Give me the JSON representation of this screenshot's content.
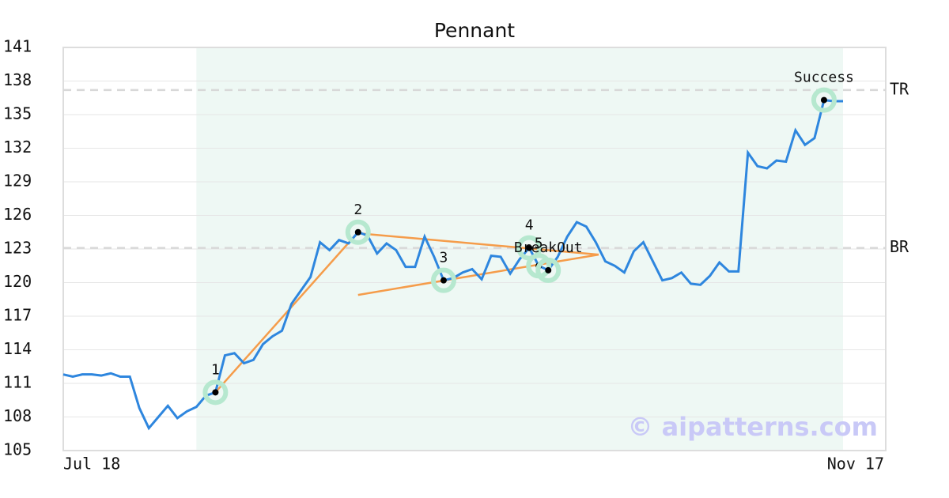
{
  "chart_data": {
    "type": "line",
    "title": "Pennant",
    "categories": [
      "Jul 18",
      null,
      null,
      null,
      null,
      null,
      null,
      null,
      null,
      null,
      null,
      null,
      null,
      null,
      null,
      null,
      null,
      null,
      null,
      null,
      null,
      null,
      null,
      null,
      null,
      null,
      null,
      null,
      null,
      null,
      null,
      null,
      null,
      null,
      null,
      null,
      null,
      null,
      null,
      null,
      null,
      null,
      null,
      null,
      null,
      null,
      null,
      null,
      null,
      null,
      null,
      null,
      null,
      null,
      null,
      null,
      null,
      null,
      null,
      null,
      null,
      null,
      null,
      null,
      null,
      null,
      null,
      null,
      null,
      null,
      null,
      null,
      null,
      null,
      null,
      null,
      null,
      null,
      null,
      null,
      null,
      null,
      "Nov 17"
    ],
    "series": [
      {
        "color": "#2e86de",
        "values": [
          111.8,
          111.6,
          111.8,
          111.8,
          111.7,
          111.9,
          111.6,
          111.6,
          108.8,
          107.0,
          108.0,
          109.0,
          107.9,
          108.5,
          108.9,
          109.9,
          110.2,
          113.5,
          113.7,
          112.8,
          113.1,
          114.5,
          115.2,
          115.7,
          118.1,
          119.3,
          120.5,
          123.6,
          122.9,
          123.8,
          123.5,
          124.5,
          124.2,
          122.6,
          123.5,
          122.9,
          121.4,
          121.4,
          124.1,
          122.3,
          120.2,
          120.4,
          120.9,
          121.2,
          120.3,
          122.4,
          122.3,
          120.8,
          122.1,
          123.1,
          121.5,
          121.1,
          122.3,
          124.1,
          125.4,
          125.0,
          123.6,
          121.9,
          121.5,
          120.9,
          122.8,
          123.6,
          121.9,
          120.2,
          120.4,
          120.9,
          119.9,
          119.8,
          120.6,
          121.8,
          121.0,
          121.0,
          131.6,
          130.4,
          130.2,
          130.9,
          130.8,
          133.6,
          132.3,
          132.9,
          136.3,
          136.2,
          136.2
        ]
      }
    ],
    "ylim": [
      105,
      141
    ],
    "yticks": [
      105,
      108,
      111,
      114,
      117,
      120,
      123,
      126,
      129,
      132,
      135,
      138,
      141
    ],
    "grid": true,
    "shaded_range": [
      14,
      82
    ],
    "shade_color": "#eef8f4",
    "reference_lines": [
      {
        "label": "TR",
        "value": 137.2
      },
      {
        "label": "BR",
        "value": 123.1
      }
    ],
    "trend_color": "#f59c4a",
    "trend_lines": [
      {
        "x": [
          16,
          31
        ],
        "y": [
          110.2,
          124.5
        ]
      },
      {
        "x": [
          31,
          56.3
        ],
        "y": [
          124.4,
          122.5
        ]
      },
      {
        "x": [
          31,
          56.3
        ],
        "y": [
          118.9,
          122.5
        ]
      }
    ],
    "annotations": [
      {
        "label": "1",
        "point": 16
      },
      {
        "label": "2",
        "point": 31
      },
      {
        "label": "3",
        "point": 40
      },
      {
        "label": "4",
        "point": 49
      },
      {
        "label": "5",
        "point": 50
      },
      {
        "label": "BreakOut",
        "point": 51
      },
      {
        "label": "Success",
        "point": 80
      }
    ],
    "watermark": "© aipatterns.com"
  }
}
